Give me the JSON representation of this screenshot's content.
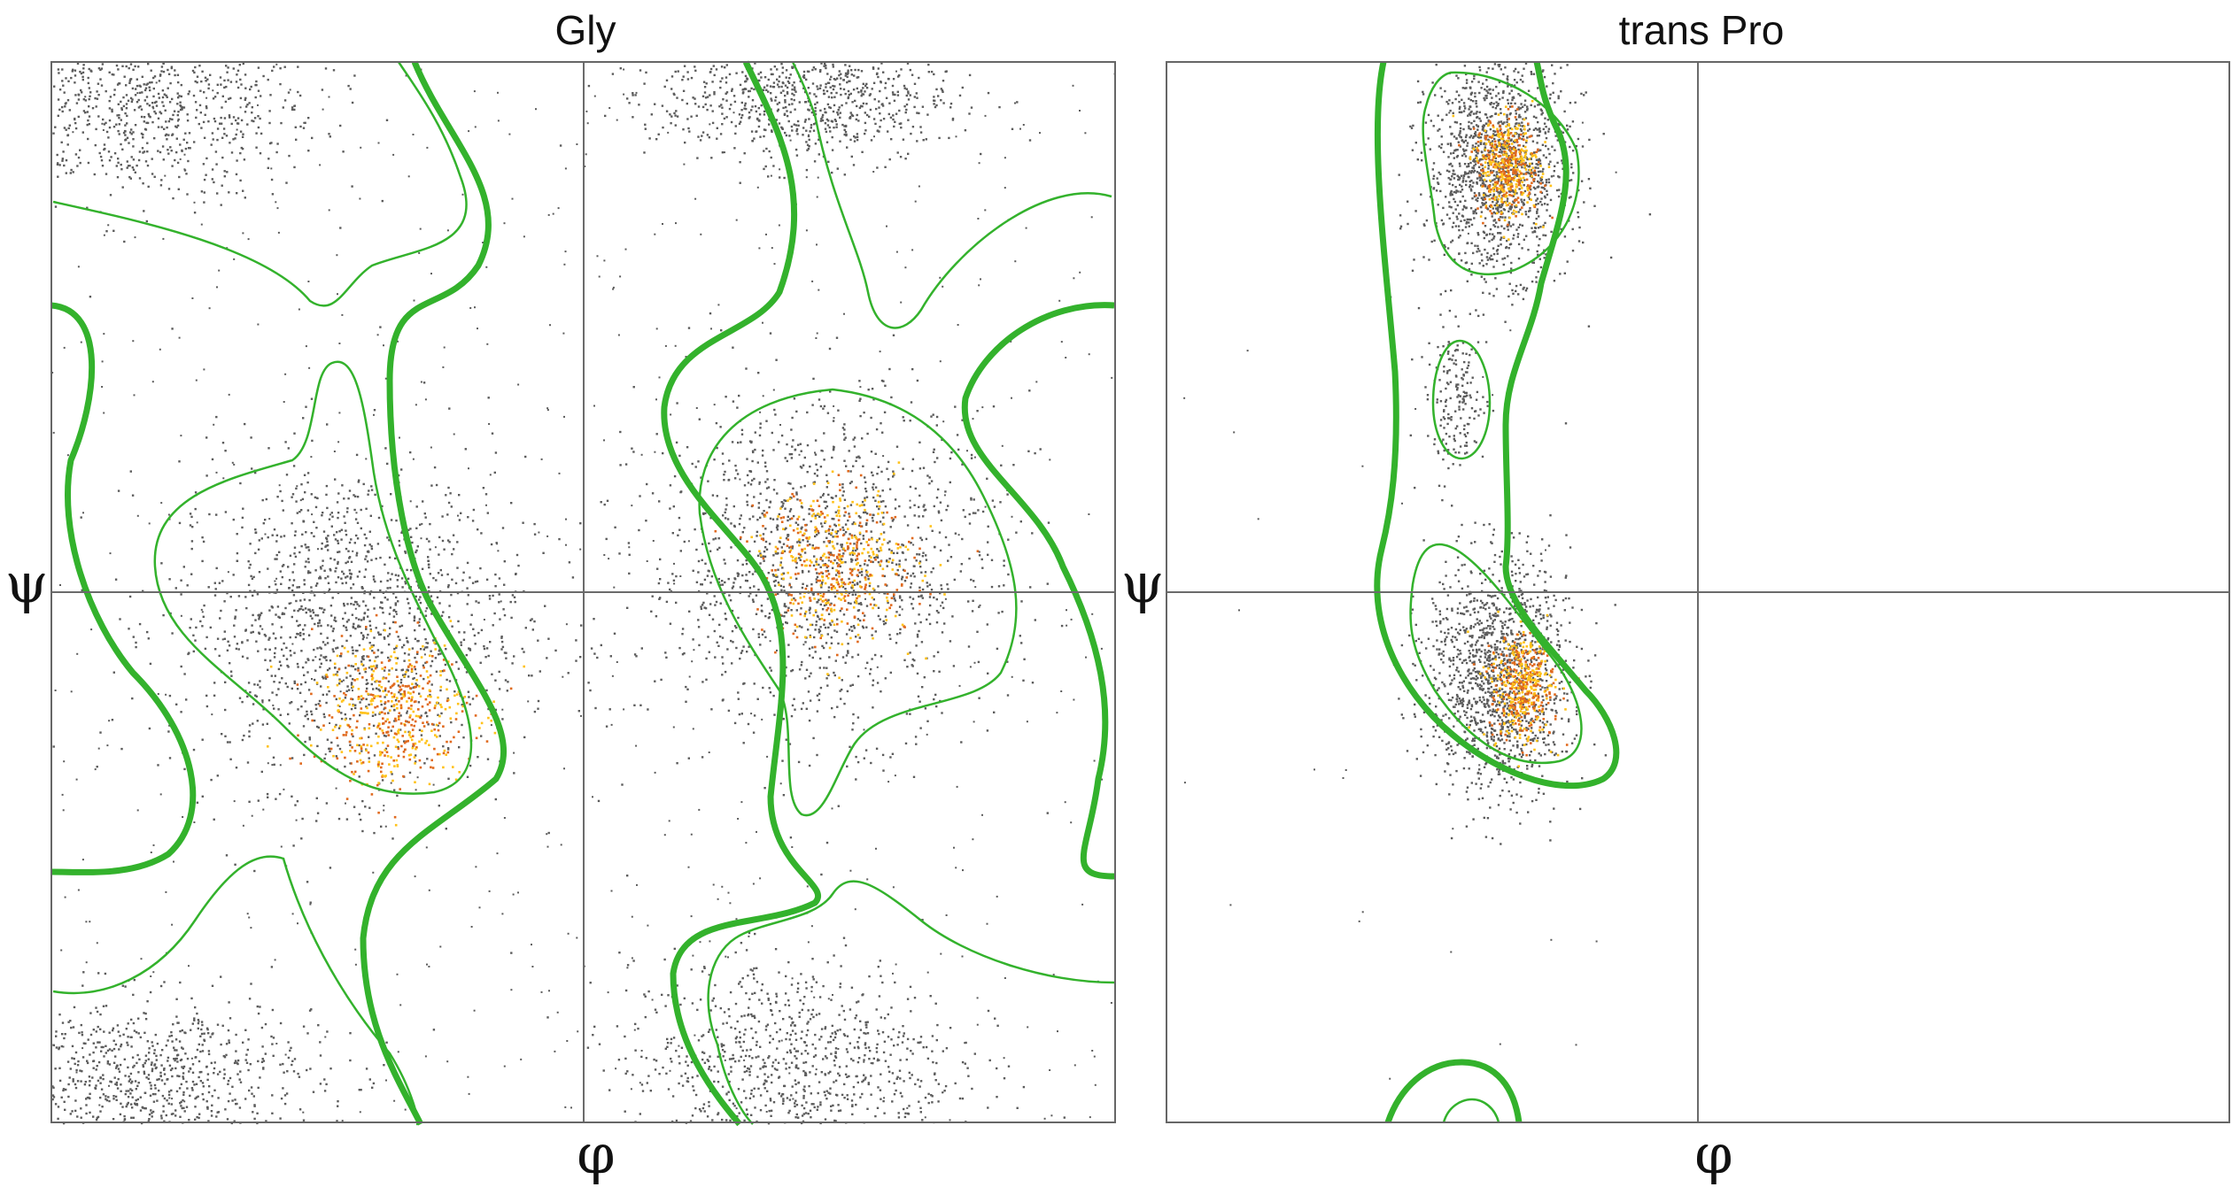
{
  "chart_data": [
    {
      "type": "scatter",
      "title": "Gly",
      "xlabel": "φ",
      "ylabel": "ψ",
      "xlim": [
        -180,
        180
      ],
      "ylim": [
        -180,
        180
      ],
      "grid": false,
      "reference_lines": {
        "x": 0,
        "y": 0
      },
      "colors": {
        "points": "#5c5c5c",
        "mid_density": "#e06a1f",
        "high_density": "#ffc21a",
        "contours": "#33b22c"
      },
      "density_clusters": [
        {
          "phi": -150,
          "psi": 165,
          "spread_phi": 30,
          "spread_psi": 16,
          "density": "medium"
        },
        {
          "phi": -80,
          "psi": -10,
          "spread_phi": 30,
          "spread_psi": 28,
          "density": "high",
          "peak": [
            -65,
            -40
          ]
        },
        {
          "phi": 80,
          "psi": 10,
          "spread_phi": 30,
          "spread_psi": 28,
          "density": "high",
          "peak": [
            85,
            10
          ]
        },
        {
          "phi": -150,
          "psi": -165,
          "spread_phi": 30,
          "spread_psi": 14,
          "density": "medium"
        },
        {
          "phi": 75,
          "psi": 170,
          "spread_phi": 25,
          "spread_psi": 12,
          "density": "medium"
        },
        {
          "phi": 70,
          "psi": -160,
          "spread_phi": 28,
          "spread_psi": 18,
          "density": "medium"
        }
      ]
    },
    {
      "type": "scatter",
      "title": "trans Pro",
      "xlabel": "φ",
      "ylabel": "ψ",
      "xlim": [
        -180,
        180
      ],
      "ylim": [
        -180,
        180
      ],
      "grid": false,
      "reference_lines": {
        "x": 0,
        "y": 0
      },
      "colors": {
        "points": "#5c5c5c",
        "mid_density": "#e06a1f",
        "high_density": "#ffc21a",
        "contours": "#33b22c"
      },
      "density_clusters": [
        {
          "phi": -68,
          "psi": 145,
          "spread_phi": 12,
          "spread_psi": 18,
          "density": "high",
          "peak": [
            -65,
            145
          ]
        },
        {
          "phi": -82,
          "psi": 65,
          "spread_phi": 5,
          "spread_psi": 12,
          "density": "low"
        },
        {
          "phi": -68,
          "psi": -28,
          "spread_phi": 12,
          "spread_psi": 20,
          "density": "high",
          "peak": [
            -60,
            -32
          ]
        }
      ]
    }
  ]
}
